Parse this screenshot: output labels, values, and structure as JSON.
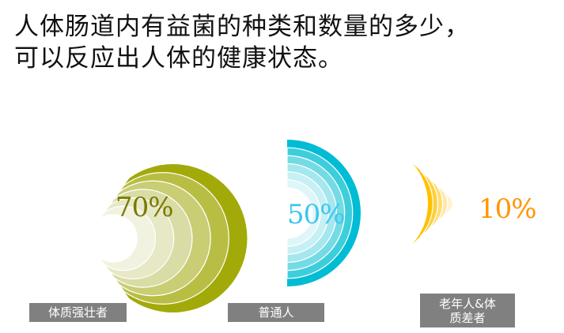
{
  "title": {
    "line1": "人体肠道内有益菌的种类和数量的多少，",
    "line2": "可以反应出人体的健康状态。"
  },
  "chart_data": [
    {
      "type": "radial-arc",
      "value": 70,
      "value_label": "70%",
      "category": "体质强壮者",
      "colors": [
        "#a2aa0a",
        "#b8be44",
        "#c9cd74",
        "#d9dca4",
        "#e6e8c6",
        "#f1f2e0"
      ],
      "label_color": "#7a7a00"
    },
    {
      "type": "radial-arc",
      "value": 50,
      "value_label": "50%",
      "category": "普通人",
      "colors": [
        "#00bcd4",
        "#3ecedb",
        "#74dbe5",
        "#a4e7ee",
        "#c6f0f4",
        "#def6f9"
      ],
      "label_color": "#3cc6f0"
    },
    {
      "type": "radial-arc",
      "value": 10,
      "value_label": "10%",
      "category": "老年人&体质差者",
      "colors": [
        "#ffc000",
        "#ffcf3c",
        "#ffdc78",
        "#ffe8a8",
        "#fff2d0"
      ],
      "label_color": "#ff9500"
    }
  ]
}
